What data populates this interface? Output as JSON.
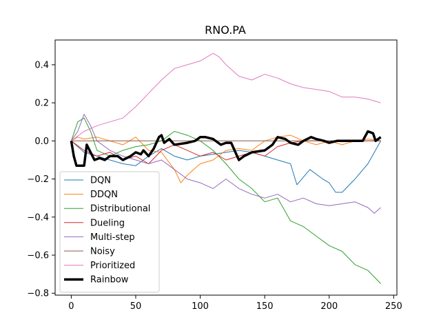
{
  "chart_data": {
    "type": "line",
    "title": "RNO.PA",
    "xlabel": "",
    "ylabel": "",
    "xlim": [
      -12.5,
      252.5
    ],
    "ylim": [
      -0.81,
      0.53
    ],
    "xticks": [
      0,
      50,
      100,
      150,
      200,
      250
    ],
    "yticks": [
      -0.8,
      -0.6,
      -0.4,
      -0.2,
      0.0,
      0.2,
      0.4
    ],
    "xtick_labels": [
      "0",
      "50",
      "100",
      "150",
      "200",
      "250"
    ],
    "ytick_labels": [
      "−0.8",
      "−0.6",
      "−0.4",
      "−0.2",
      "0.0",
      "0.2",
      "0.4"
    ],
    "grid": false,
    "legend_position": "lower-left",
    "series": [
      {
        "name": "DQN",
        "color": "#1f77b4",
        "width": 1,
        "x": [
          0,
          10,
          20,
          30,
          40,
          50,
          60,
          70,
          80,
          90,
          100,
          110,
          120,
          130,
          140,
          150,
          160,
          170,
          175,
          185,
          195,
          200,
          205,
          210,
          220,
          230,
          240
        ],
        "y": [
          0.0,
          -0.06,
          -0.08,
          -0.1,
          -0.12,
          -0.13,
          -0.08,
          -0.04,
          -0.08,
          -0.1,
          -0.08,
          -0.07,
          -0.06,
          -0.05,
          -0.06,
          -0.08,
          -0.1,
          -0.12,
          -0.23,
          -0.15,
          -0.2,
          -0.22,
          -0.27,
          -0.27,
          -0.2,
          -0.12,
          0.0
        ]
      },
      {
        "name": "DDQN",
        "color": "#ff7f0e",
        "width": 1,
        "x": [
          0,
          5,
          10,
          20,
          30,
          40,
          50,
          60,
          70,
          80,
          85,
          90,
          100,
          110,
          120,
          130,
          140,
          150,
          160,
          170,
          180,
          190,
          200,
          210,
          220,
          230,
          240
        ],
        "y": [
          0.0,
          0.02,
          0.01,
          0.02,
          0.0,
          -0.02,
          0.02,
          -0.05,
          -0.06,
          -0.15,
          -0.22,
          -0.18,
          -0.12,
          -0.1,
          -0.05,
          -0.04,
          -0.05,
          0.0,
          0.02,
          0.03,
          0.0,
          -0.02,
          0.0,
          -0.02,
          0.0,
          0.01,
          0.0
        ]
      },
      {
        "name": "Distributional",
        "color": "#2ca02c",
        "width": 1,
        "x": [
          0,
          5,
          10,
          15,
          20,
          30,
          40,
          50,
          60,
          70,
          80,
          90,
          100,
          110,
          120,
          130,
          140,
          150,
          160,
          170,
          180,
          190,
          200,
          210,
          220,
          230,
          240
        ],
        "y": [
          0.0,
          0.1,
          0.12,
          0.05,
          -0.05,
          -0.08,
          -0.05,
          -0.03,
          -0.02,
          0.0,
          0.05,
          0.03,
          0.0,
          -0.05,
          -0.12,
          -0.2,
          -0.25,
          -0.32,
          -0.3,
          -0.42,
          -0.45,
          -0.5,
          -0.55,
          -0.58,
          -0.65,
          -0.68,
          -0.75
        ]
      },
      {
        "name": "Dueling",
        "color": "#d62728",
        "width": 1,
        "x": [
          0,
          10,
          20,
          30,
          40,
          50,
          60,
          70,
          80,
          90,
          100,
          110,
          120,
          130,
          140,
          150,
          160,
          170,
          180,
          190,
          200,
          210,
          220,
          230,
          240
        ],
        "y": [
          0.0,
          -0.05,
          -0.08,
          -0.06,
          -0.1,
          -0.08,
          -0.12,
          -0.05,
          -0.02,
          -0.05,
          -0.08,
          -0.06,
          -0.1,
          -0.08,
          -0.06,
          -0.08,
          -0.03,
          -0.01,
          0.0,
          0.0,
          0.0,
          0.0,
          0.0,
          0.0,
          0.0
        ]
      },
      {
        "name": "Multi-step",
        "color": "#9467bd",
        "width": 1,
        "x": [
          0,
          5,
          10,
          15,
          20,
          30,
          40,
          50,
          60,
          70,
          80,
          90,
          100,
          110,
          120,
          130,
          140,
          150,
          160,
          170,
          180,
          190,
          200,
          210,
          220,
          230,
          235,
          240
        ],
        "y": [
          0.0,
          0.05,
          0.14,
          0.08,
          0.0,
          -0.05,
          -0.08,
          -0.1,
          -0.12,
          -0.1,
          -0.15,
          -0.2,
          -0.22,
          -0.25,
          -0.2,
          -0.25,
          -0.28,
          -0.3,
          -0.28,
          -0.32,
          -0.3,
          -0.33,
          -0.34,
          -0.33,
          -0.32,
          -0.35,
          -0.38,
          -0.35
        ]
      },
      {
        "name": "Noisy",
        "color": "#8c564b",
        "width": 1,
        "x": [
          0,
          240
        ],
        "y": [
          0.0,
          0.0
        ]
      },
      {
        "name": "Prioritized",
        "color": "#e377c2",
        "width": 1,
        "x": [
          0,
          10,
          20,
          30,
          40,
          50,
          60,
          70,
          80,
          90,
          100,
          110,
          115,
          120,
          130,
          140,
          150,
          160,
          170,
          180,
          190,
          200,
          210,
          220,
          230,
          240
        ],
        "y": [
          0.0,
          0.05,
          0.08,
          0.1,
          0.12,
          0.18,
          0.25,
          0.32,
          0.38,
          0.4,
          0.42,
          0.46,
          0.44,
          0.4,
          0.34,
          0.32,
          0.35,
          0.33,
          0.3,
          0.28,
          0.27,
          0.26,
          0.23,
          0.23,
          0.22,
          0.2
        ]
      },
      {
        "name": "Rainbow",
        "color": "#000000",
        "width": 3.5,
        "x": [
          0,
          2,
          4,
          10,
          12,
          18,
          22,
          26,
          30,
          36,
          40,
          46,
          50,
          54,
          56,
          60,
          64,
          68,
          70,
          72,
          76,
          80,
          90,
          96,
          100,
          104,
          110,
          116,
          120,
          124,
          130,
          134,
          140,
          150,
          156,
          160,
          166,
          170,
          176,
          180,
          186,
          190,
          196,
          200,
          206,
          212,
          220,
          226,
          230,
          234,
          236,
          240
        ],
        "y": [
          0.0,
          -0.08,
          -0.13,
          -0.13,
          -0.02,
          -0.1,
          -0.09,
          -0.1,
          -0.08,
          -0.08,
          -0.1,
          -0.08,
          -0.06,
          -0.07,
          -0.05,
          -0.08,
          -0.04,
          0.02,
          0.03,
          -0.01,
          0.01,
          -0.02,
          -0.01,
          0.0,
          0.02,
          0.02,
          0.01,
          -0.02,
          -0.01,
          -0.01,
          -0.1,
          -0.08,
          -0.06,
          -0.05,
          -0.02,
          0.02,
          0.01,
          -0.01,
          -0.02,
          0.0,
          0.02,
          0.01,
          0.0,
          -0.01,
          0.0,
          0.0,
          0.0,
          0.0,
          0.05,
          0.04,
          0.0,
          0.02
        ]
      }
    ]
  }
}
